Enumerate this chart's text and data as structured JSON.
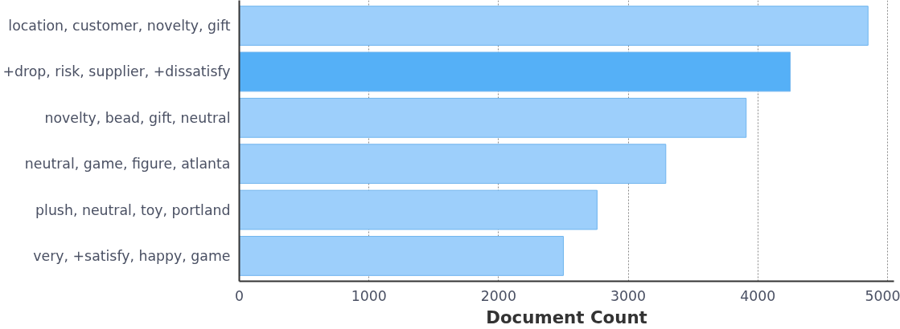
{
  "chart_data": {
    "type": "bar",
    "orientation": "horizontal",
    "xlabel": "Document Count",
    "categories": [
      "location, customer, novelty, gift",
      "+drop, risk, supplier, +dissatisfy",
      "novelty, bead, gift, neutral",
      "neutral, game, figure, atlanta",
      "plush, neutral, toy, portland",
      "very, +satisfy, happy, game"
    ],
    "values": [
      4850,
      4250,
      3910,
      3290,
      2760,
      2500
    ],
    "colors": [
      "#9dcffb",
      "#55b0f7",
      "#9dcffb",
      "#9dcffb",
      "#9dcffb",
      "#9dcffb"
    ],
    "xlim": [
      0,
      5050
    ],
    "xticks": [
      0,
      1000,
      2000,
      3000,
      4000,
      5000
    ],
    "grid": "x"
  }
}
